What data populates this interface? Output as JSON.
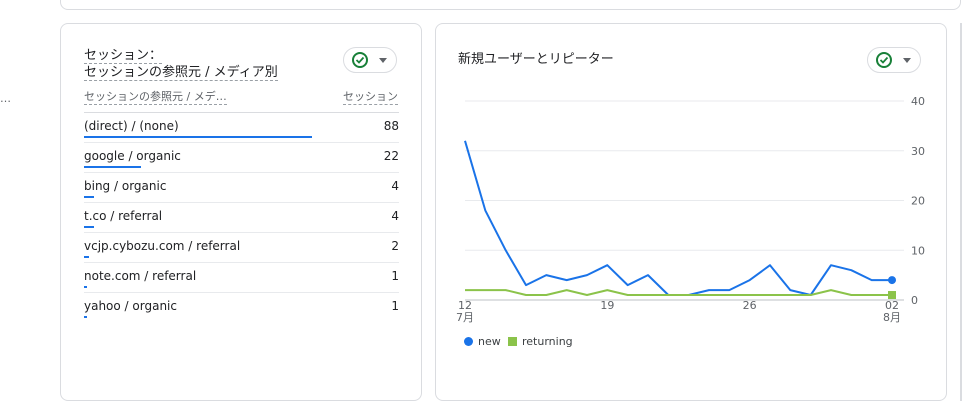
{
  "left_edge": {
    "ellipsis": "…"
  },
  "sources_card": {
    "title_line1": "セッション：",
    "title_line2": "セッションの参照元 / メディア別",
    "col_source": "セッションの参照元 / メデ…",
    "col_sessions": "セッション",
    "max_value": 88,
    "rows": [
      {
        "label": "(direct) / (none)",
        "value": 88
      },
      {
        "label": "google / organic",
        "value": 22
      },
      {
        "label": "bing / organic",
        "value": 4
      },
      {
        "label": "t.co / referral",
        "value": 4
      },
      {
        "label": "vcjp.cybozu.com / referral",
        "value": 2
      },
      {
        "label": "note.com / referral",
        "value": 1
      },
      {
        "label": "yahoo / organic",
        "value": 1
      }
    ],
    "colors": {
      "bar": "#1a73e8",
      "check": "#188038"
    }
  },
  "users_card": {
    "title": "新規ユーザーとリピーター",
    "legend": {
      "new": "new",
      "returning": "returning"
    },
    "colors": {
      "new": "#1a73e8",
      "returning": "#8bc34a"
    }
  },
  "chart_data": {
    "type": "line",
    "title": "新規ユーザーとリピーター",
    "x_tick_labels": [
      {
        "day": "12",
        "month": "7月"
      },
      {
        "day": "19",
        "month": ""
      },
      {
        "day": "26",
        "month": ""
      },
      {
        "day": "02",
        "month": "8月"
      }
    ],
    "y_ticks": [
      "0",
      "10",
      "20",
      "30",
      "40"
    ],
    "ylim": [
      0,
      40
    ],
    "x": [
      "07-12",
      "07-13",
      "07-14",
      "07-15",
      "07-16",
      "07-17",
      "07-18",
      "07-19",
      "07-20",
      "07-21",
      "07-22",
      "07-23",
      "07-24",
      "07-25",
      "07-26",
      "07-27",
      "07-28",
      "07-29",
      "07-30",
      "07-31",
      "08-01",
      "08-02"
    ],
    "series": [
      {
        "name": "new",
        "values": [
          32,
          18,
          10,
          3,
          5,
          4,
          5,
          7,
          3,
          5,
          1,
          1,
          2,
          2,
          4,
          7,
          2,
          1,
          7,
          6,
          4,
          4
        ]
      },
      {
        "name": "returning",
        "values": [
          2,
          2,
          2,
          1,
          1,
          2,
          1,
          2,
          1,
          1,
          1,
          1,
          1,
          1,
          1,
          1,
          1,
          1,
          2,
          1,
          1,
          1
        ]
      }
    ],
    "grid": true,
    "legend_position": "bottom-left"
  }
}
